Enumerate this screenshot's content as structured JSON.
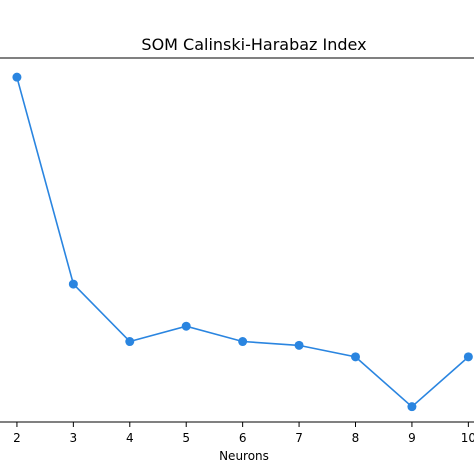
{
  "chart_data": {
    "type": "line",
    "title": "SOM Calinski-Harabaz Index",
    "xlabel": "Neurons",
    "ylabel": "",
    "x": [
      2,
      3,
      4,
      5,
      6,
      7,
      8,
      9,
      10
    ],
    "x_tick_labels": [
      "2",
      "3",
      "4",
      "5",
      "6",
      "7",
      "8",
      "9",
      "10"
    ],
    "series": [
      {
        "values": [
          0.95,
          0.41,
          0.26,
          0.3,
          0.26,
          0.25,
          0.22,
          0.09,
          0.22
        ]
      }
    ],
    "xlim": [
      1.7,
      10.1
    ],
    "ylim": [
      0.05,
      1.0
    ],
    "grid": false,
    "legend": "none",
    "colors": {
      "line": "#1f77b4",
      "marker": "#2a85e0",
      "axis": "#000000"
    }
  }
}
